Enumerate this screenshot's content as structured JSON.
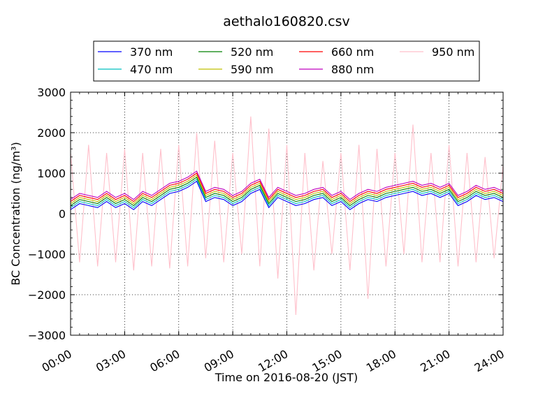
{
  "chart_data": {
    "type": "line",
    "title": "aethalo160820.csv",
    "xlabel": "Time on 2016-08-20 (JST)",
    "ylabel": "BC Concentration (ng/m³)",
    "x_range_hours": [
      0,
      24
    ],
    "xlim": [
      0,
      24
    ],
    "ylim": [
      -3000,
      3000
    ],
    "x_ticks": [
      {
        "value": 0,
        "label": "00:00"
      },
      {
        "value": 3,
        "label": "03:00"
      },
      {
        "value": 6,
        "label": "06:00"
      },
      {
        "value": 9,
        "label": "09:00"
      },
      {
        "value": 12,
        "label": "12:00"
      },
      {
        "value": 15,
        "label": "15:00"
      },
      {
        "value": 18,
        "label": "18:00"
      },
      {
        "value": 21,
        "label": "21:00"
      },
      {
        "value": 24,
        "label": "24:00"
      }
    ],
    "y_ticks": [
      {
        "value": 3000,
        "label": "3000"
      },
      {
        "value": 2000,
        "label": "2000"
      },
      {
        "value": 1000,
        "label": "1000"
      },
      {
        "value": 0,
        "label": "0"
      },
      {
        "value": -1000,
        "label": "−1000"
      },
      {
        "value": -2000,
        "label": "−2000"
      },
      {
        "value": -3000,
        "label": "−3000"
      }
    ],
    "grid": true,
    "legend_position": "top",
    "series": [
      {
        "name": "370 nm",
        "color": "#0000ff",
        "x_hours": [
          0,
          0.5,
          1,
          1.5,
          2,
          2.5,
          3,
          3.5,
          4,
          4.5,
          5,
          5.5,
          6,
          6.5,
          7,
          7.5,
          8,
          8.5,
          9,
          9.5,
          10,
          10.5,
          11,
          11.5,
          12,
          12.5,
          13,
          13.5,
          14,
          14.5,
          15,
          15.5,
          16,
          16.5,
          17,
          17.5,
          18,
          18.5,
          19,
          19.5,
          20,
          20.5,
          21,
          21.5,
          22,
          22.5,
          23,
          23.5,
          24
        ],
        "values": [
          100,
          250,
          200,
          150,
          300,
          150,
          250,
          100,
          300,
          200,
          350,
          500,
          550,
          650,
          800,
          300,
          400,
          350,
          200,
          300,
          500,
          600,
          150,
          400,
          300,
          200,
          250,
          350,
          400,
          200,
          300,
          100,
          250,
          350,
          300,
          400,
          450,
          500,
          550,
          450,
          500,
          400,
          500,
          200,
          300,
          450,
          350,
          400,
          300
        ]
      },
      {
        "name": "470 nm",
        "color": "#00bfbf",
        "x_hours": [
          0,
          0.5,
          1,
          1.5,
          2,
          2.5,
          3,
          3.5,
          4,
          4.5,
          5,
          5.5,
          6,
          6.5,
          7,
          7.5,
          8,
          8.5,
          9,
          9.5,
          10,
          10.5,
          11,
          11.5,
          12,
          12.5,
          13,
          13.5,
          14,
          14.5,
          15,
          15.5,
          16,
          16.5,
          17,
          17.5,
          18,
          18.5,
          19,
          19.5,
          20,
          20.5,
          21,
          21.5,
          22,
          22.5,
          23,
          23.5,
          24
        ],
        "values": [
          150,
          300,
          250,
          200,
          350,
          200,
          300,
          150,
          350,
          250,
          400,
          550,
          600,
          700,
          850,
          350,
          450,
          400,
          250,
          350,
          550,
          650,
          200,
          450,
          350,
          250,
          300,
          400,
          450,
          250,
          350,
          150,
          300,
          400,
          350,
          450,
          500,
          550,
          600,
          500,
          550,
          450,
          550,
          250,
          350,
          500,
          400,
          450,
          350
        ]
      },
      {
        "name": "520 nm",
        "color": "#008000",
        "x_hours": [
          0,
          0.5,
          1,
          1.5,
          2,
          2.5,
          3,
          3.5,
          4,
          4.5,
          5,
          5.5,
          6,
          6.5,
          7,
          7.5,
          8,
          8.5,
          9,
          9.5,
          10,
          10.5,
          11,
          11.5,
          12,
          12.5,
          13,
          13.5,
          14,
          14.5,
          15,
          15.5,
          16,
          16.5,
          17,
          17.5,
          18,
          18.5,
          19,
          19.5,
          20,
          20.5,
          21,
          21.5,
          22,
          22.5,
          23,
          23.5,
          24
        ],
        "values": [
          200,
          350,
          300,
          250,
          400,
          250,
          350,
          200,
          400,
          300,
          450,
          600,
          650,
          750,
          900,
          400,
          500,
          450,
          300,
          400,
          600,
          700,
          250,
          500,
          400,
          300,
          350,
          450,
          500,
          300,
          400,
          200,
          350,
          450,
          400,
          500,
          550,
          600,
          650,
          550,
          600,
          500,
          600,
          300,
          400,
          550,
          450,
          500,
          400
        ]
      },
      {
        "name": "590 nm",
        "color": "#bfbf00",
        "x_hours": [
          0,
          0.5,
          1,
          1.5,
          2,
          2.5,
          3,
          3.5,
          4,
          4.5,
          5,
          5.5,
          6,
          6.5,
          7,
          7.5,
          8,
          8.5,
          9,
          9.5,
          10,
          10.5,
          11,
          11.5,
          12,
          12.5,
          13,
          13.5,
          14,
          14.5,
          15,
          15.5,
          16,
          16.5,
          17,
          17.5,
          18,
          18.5,
          19,
          19.5,
          20,
          20.5,
          21,
          21.5,
          22,
          22.5,
          23,
          23.5,
          24
        ],
        "values": [
          250,
          400,
          350,
          300,
          450,
          300,
          400,
          250,
          450,
          350,
          500,
          650,
          700,
          800,
          950,
          450,
          550,
          500,
          350,
          450,
          650,
          750,
          300,
          550,
          450,
          350,
          400,
          500,
          550,
          350,
          450,
          250,
          400,
          500,
          450,
          550,
          600,
          650,
          700,
          600,
          650,
          550,
          650,
          350,
          450,
          600,
          500,
          550,
          450
        ]
      },
      {
        "name": "660 nm",
        "color": "#ff0000",
        "x_hours": [
          0,
          0.5,
          1,
          1.5,
          2,
          2.5,
          3,
          3.5,
          4,
          4.5,
          5,
          5.5,
          6,
          6.5,
          7,
          7.5,
          8,
          8.5,
          9,
          9.5,
          10,
          10.5,
          11,
          11.5,
          12,
          12.5,
          13,
          13.5,
          14,
          14.5,
          15,
          15.5,
          16,
          16.5,
          17,
          17.5,
          18,
          18.5,
          19,
          19.5,
          20,
          20.5,
          21,
          21.5,
          22,
          22.5,
          23,
          23.5,
          24
        ],
        "values": [
          300,
          450,
          400,
          350,
          500,
          350,
          450,
          300,
          500,
          400,
          550,
          700,
          750,
          850,
          1000,
          500,
          600,
          550,
          400,
          500,
          700,
          800,
          350,
          600,
          500,
          400,
          450,
          550,
          600,
          400,
          500,
          300,
          450,
          550,
          500,
          600,
          650,
          700,
          750,
          650,
          700,
          600,
          700,
          400,
          500,
          650,
          550,
          600,
          500
        ]
      },
      {
        "name": "880 nm",
        "color": "#bf00bf",
        "x_hours": [
          0,
          0.5,
          1,
          1.5,
          2,
          2.5,
          3,
          3.5,
          4,
          4.5,
          5,
          5.5,
          6,
          6.5,
          7,
          7.5,
          8,
          8.5,
          9,
          9.5,
          10,
          10.5,
          11,
          11.5,
          12,
          12.5,
          13,
          13.5,
          14,
          14.5,
          15,
          15.5,
          16,
          16.5,
          17,
          17.5,
          18,
          18.5,
          19,
          19.5,
          20,
          20.5,
          21,
          21.5,
          22,
          22.5,
          23,
          23.5,
          24
        ],
        "values": [
          350,
          500,
          450,
          400,
          550,
          400,
          500,
          350,
          550,
          450,
          600,
          750,
          800,
          900,
          1050,
          550,
          650,
          600,
          450,
          550,
          750,
          850,
          400,
          650,
          550,
          450,
          500,
          600,
          650,
          450,
          550,
          350,
          500,
          600,
          550,
          650,
          700,
          750,
          800,
          700,
          750,
          650,
          750,
          450,
          550,
          700,
          600,
          650,
          550
        ]
      },
      {
        "name": "950 nm",
        "color": "#ffc0cb",
        "x_hours": [
          0,
          0.5,
          1,
          1.5,
          2,
          2.5,
          3,
          3.5,
          4,
          4.5,
          5,
          5.5,
          6,
          6.5,
          7,
          7.5,
          8,
          8.5,
          9,
          9.5,
          10,
          10.5,
          11,
          11.5,
          12,
          12.5,
          13,
          13.5,
          14,
          14.5,
          15,
          15.5,
          16,
          16.5,
          17,
          17.5,
          18,
          18.5,
          19,
          19.5,
          20,
          20.5,
          21,
          21.5,
          22,
          22.5,
          23,
          23.5,
          24
        ],
        "values": [
          1500,
          -1200,
          1700,
          -1300,
          1500,
          -1200,
          1600,
          -1400,
          1500,
          -1300,
          1600,
          -1350,
          1700,
          -1300,
          2000,
          -1100,
          1800,
          -1200,
          1500,
          -1000,
          2400,
          -1300,
          2100,
          -1600,
          1700,
          -2500,
          1500,
          -1400,
          1300,
          -1000,
          1500,
          -1400,
          1700,
          -2100,
          1600,
          -1300,
          1500,
          -1000,
          2200,
          -1200,
          1500,
          -1200,
          1700,
          -1300,
          1500,
          -1200,
          1400,
          -1100,
          1200
        ]
      }
    ]
  }
}
